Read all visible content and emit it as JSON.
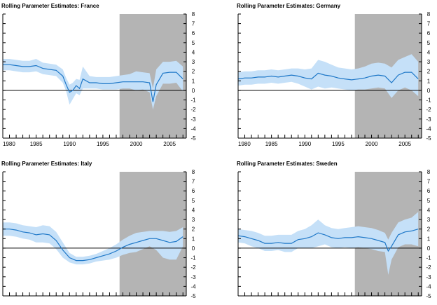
{
  "colors": {
    "band": "#c5e0f8",
    "line": "#1f78c8",
    "shade": "#b4b4b4",
    "axis": "#000000"
  },
  "chart_data": [
    {
      "type": "area",
      "title": "Rolling Parameter Estimates: France",
      "xlim": [
        1980,
        2007.5
      ],
      "ylim": [
        -5,
        8
      ],
      "xticks": [
        1980,
        1985,
        1990,
        1995,
        2000,
        2005
      ],
      "yticks": [
        8,
        7,
        6,
        5,
        4,
        3,
        2,
        1,
        0,
        -1,
        -2,
        -3,
        -4,
        -5
      ],
      "xtick_labels": [
        "1980",
        "1985",
        "1990",
        "1995",
        "2000",
        "2005"
      ],
      "shaded_region": [
        1997.5,
        2007.5
      ],
      "x": [
        1980,
        1981,
        1982,
        1983,
        1984,
        1985,
        1986,
        1987,
        1988,
        1989,
        1989.5,
        1990,
        1990.5,
        1991,
        1991.5,
        1992,
        1993,
        1994,
        1995,
        1996,
        1997,
        1998,
        1999,
        2000,
        2001,
        2002,
        2002.5,
        2003,
        2004,
        2005,
        2006,
        2007
      ],
      "series": [
        {
          "values": [
            2.7,
            2.7,
            2.6,
            2.5,
            2.5,
            2.6,
            2.3,
            2.2,
            2.1,
            1.5,
            0.6,
            -0.2,
            0.0,
            0.5,
            0.2,
            1.2,
            0.8,
            0.8,
            0.7,
            0.7,
            0.8,
            0.9,
            0.9,
            0.9,
            0.9,
            0.8,
            -1.2,
            0.6,
            1.8,
            1.9,
            1.9,
            1.2
          ]
        },
        {
          "name": "upper",
          "values": [
            3.3,
            3.3,
            3.2,
            3.1,
            3.1,
            3.3,
            2.9,
            2.8,
            2.7,
            2.2,
            1.3,
            0.6,
            0.8,
            1.2,
            1.1,
            2.5,
            1.5,
            1.4,
            1.4,
            1.4,
            1.5,
            1.6,
            1.7,
            2.0,
            1.9,
            1.8,
            0.2,
            2.2,
            3.0,
            3.0,
            3.1,
            2.5
          ]
        },
        {
          "name": "lower",
          "values": [
            2.1,
            2.1,
            2.0,
            1.9,
            1.9,
            2.0,
            1.7,
            1.6,
            1.5,
            0.8,
            -0.1,
            -1.5,
            -0.9,
            -0.3,
            -0.5,
            0.2,
            0.2,
            0.2,
            0.1,
            0.1,
            0.1,
            0.2,
            0.2,
            0.0,
            0.1,
            -0.2,
            -2.0,
            -0.6,
            0.7,
            0.7,
            0.8,
            -0.1
          ]
        }
      ]
    },
    {
      "type": "area",
      "title": "Rolling Parameter Estimates: Germany",
      "xlim": [
        1980,
        2007.5
      ],
      "ylim": [
        -5,
        8
      ],
      "xticks": [
        1980,
        1985,
        1990,
        1995,
        2000,
        2005
      ],
      "yticks": [
        8,
        7,
        6,
        5,
        4,
        3,
        2,
        1,
        0,
        -1,
        -2,
        -3,
        -4,
        -5
      ],
      "xtick_labels": [
        "1980",
        "1985",
        "1990",
        "1995",
        "2000",
        "2005"
      ],
      "shaded_region": [
        1997.5,
        2007.5
      ],
      "x": [
        1980,
        1981,
        1982,
        1983,
        1984,
        1985,
        1986,
        1987,
        1988,
        1989,
        1990,
        1991,
        1992,
        1993,
        1994,
        1995,
        1996,
        1997,
        1998,
        1999,
        2000,
        2001,
        2002,
        2003,
        2004,
        2005,
        2006,
        2007
      ],
      "series": [
        {
          "values": [
            1.2,
            1.3,
            1.3,
            1.4,
            1.4,
            1.5,
            1.4,
            1.5,
            1.6,
            1.5,
            1.3,
            1.2,
            1.8,
            1.6,
            1.5,
            1.3,
            1.2,
            1.1,
            1.2,
            1.3,
            1.5,
            1.6,
            1.5,
            0.8,
            1.6,
            1.9,
            1.9,
            1.2
          ]
        },
        {
          "name": "upper",
          "values": [
            1.9,
            2.0,
            2.0,
            2.1,
            2.1,
            2.2,
            2.1,
            2.2,
            2.3,
            2.3,
            2.2,
            2.3,
            3.2,
            3.0,
            2.7,
            2.4,
            2.3,
            2.2,
            2.3,
            2.5,
            2.8,
            2.9,
            2.8,
            2.4,
            3.2,
            3.5,
            3.8,
            3.0
          ]
        },
        {
          "name": "lower",
          "values": [
            0.5,
            0.6,
            0.6,
            0.7,
            0.7,
            0.8,
            0.7,
            0.8,
            0.9,
            0.7,
            0.4,
            0.1,
            0.4,
            0.2,
            0.3,
            0.2,
            0.1,
            0.0,
            0.1,
            0.1,
            0.2,
            0.3,
            0.2,
            -0.8,
            0.0,
            0.3,
            0.0,
            -0.6
          ]
        }
      ]
    },
    {
      "type": "area",
      "title": "Rolling Parameter Estimates: Italy",
      "xlim": [
        1980,
        2007.5
      ],
      "ylim": [
        -5,
        8
      ],
      "xticks": [
        1980,
        1985,
        1990,
        1995,
        2000,
        2005
      ],
      "yticks": [
        8,
        7,
        6,
        5,
        4,
        3,
        2,
        1,
        0,
        -1,
        -2,
        -3,
        -4,
        -5
      ],
      "xtick_labels": [
        "",
        "",
        "",
        "",
        "",
        ""
      ],
      "shaded_region": [
        1997.5,
        2007.5
      ],
      "x": [
        1980,
        1981,
        1982,
        1983,
        1984,
        1985,
        1986,
        1987,
        1988,
        1989,
        1990,
        1991,
        1992,
        1993,
        1994,
        1995,
        1996,
        1997,
        1998,
        1999,
        2000,
        2001,
        2002,
        2003,
        2004,
        2005,
        2006,
        2007
      ],
      "series": [
        {
          "values": [
            2.0,
            2.0,
            1.9,
            1.7,
            1.6,
            1.4,
            1.5,
            1.4,
            0.8,
            -0.2,
            -1.0,
            -1.3,
            -1.3,
            -1.2,
            -1.0,
            -0.8,
            -0.6,
            -0.3,
            0.1,
            0.4,
            0.6,
            0.8,
            1.0,
            1.0,
            0.8,
            0.6,
            0.7,
            1.2
          ]
        },
        {
          "name": "upper",
          "values": [
            2.7,
            2.7,
            2.6,
            2.4,
            2.3,
            2.2,
            2.4,
            2.3,
            1.7,
            0.6,
            -0.5,
            -0.9,
            -0.9,
            -0.8,
            -0.6,
            -0.3,
            0.0,
            0.4,
            0.9,
            1.3,
            1.6,
            1.7,
            1.8,
            1.8,
            1.8,
            1.7,
            1.8,
            2.2
          ]
        },
        {
          "name": "lower",
          "values": [
            1.3,
            1.3,
            1.2,
            1.0,
            0.9,
            0.6,
            0.6,
            0.5,
            -0.1,
            -1.0,
            -1.5,
            -1.7,
            -1.7,
            -1.6,
            -1.4,
            -1.3,
            -1.2,
            -1.0,
            -0.7,
            -0.5,
            -0.4,
            -0.1,
            0.2,
            -0.2,
            -1.0,
            -1.2,
            -1.2,
            0.2
          ]
        }
      ]
    },
    {
      "type": "area",
      "title": "Rolling Parameter Estimates: Sweden",
      "xlim": [
        1980,
        2007.5
      ],
      "ylim": [
        -5,
        8
      ],
      "xticks": [
        1980,
        1985,
        1990,
        1995,
        2000,
        2005
      ],
      "yticks": [
        8,
        7,
        6,
        5,
        4,
        3,
        2,
        1,
        0,
        -1,
        -2,
        -3,
        -4,
        -5
      ],
      "xtick_labels": [
        "",
        "",
        "",
        "",
        "",
        ""
      ],
      "shaded_region": [
        1997.5,
        2007.5
      ],
      "x": [
        1980,
        1981,
        1982,
        1983,
        1984,
        1985,
        1986,
        1987,
        1988,
        1989,
        1990,
        1991,
        1992,
        1993,
        1994,
        1995,
        1996,
        1997,
        1998,
        1999,
        2000,
        2001,
        2002,
        2002.5,
        2003,
        2004,
        2005,
        2006,
        2007
      ],
      "series": [
        {
          "values": [
            1.3,
            1.2,
            1.0,
            0.8,
            0.5,
            0.5,
            0.6,
            0.5,
            0.5,
            0.9,
            1.0,
            1.2,
            1.6,
            1.4,
            1.1,
            1.0,
            1.1,
            1.1,
            1.2,
            1.1,
            1.0,
            0.8,
            0.6,
            -0.3,
            0.2,
            1.4,
            1.7,
            1.8,
            2.0
          ]
        },
        {
          "name": "upper",
          "values": [
            2.0,
            1.9,
            1.8,
            1.6,
            1.3,
            1.3,
            1.4,
            1.4,
            1.4,
            1.8,
            2.0,
            2.4,
            3.0,
            2.4,
            2.1,
            2.0,
            2.1,
            2.2,
            2.3,
            2.2,
            2.1,
            1.9,
            1.6,
            0.9,
            1.6,
            2.7,
            3.0,
            3.2,
            3.8
          ]
        },
        {
          "name": "lower",
          "values": [
            0.6,
            0.5,
            0.2,
            0.0,
            -0.3,
            -0.3,
            -0.2,
            -0.4,
            -0.4,
            0.0,
            0.0,
            0.0,
            0.2,
            0.4,
            0.1,
            0.0,
            0.1,
            0.0,
            0.1,
            0.0,
            -0.1,
            -0.3,
            -0.4,
            -2.8,
            -1.2,
            0.1,
            0.4,
            0.4,
            0.2
          ]
        }
      ]
    }
  ]
}
